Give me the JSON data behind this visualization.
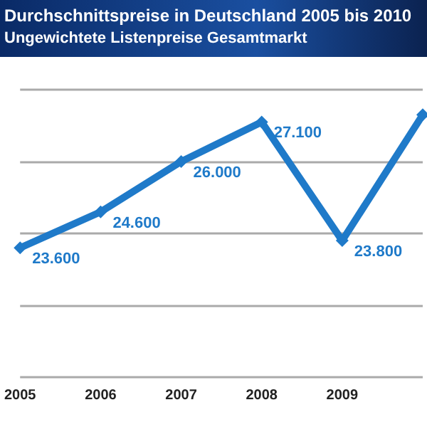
{
  "chart_data": {
    "type": "line",
    "title": "Durchschnittspreise in Deutschland 2005 bis 2010",
    "subtitle": "Ungewichtete Listenpreise Gesamtmarkt",
    "categories": [
      "2005",
      "2006",
      "2007",
      "2008",
      "2009",
      null
    ],
    "series": [
      {
        "color": "#1f7ac9",
        "values": [
          23600,
          24600,
          26000,
          27100,
          23800,
          27300
        ],
        "value_labels": [
          "23.600",
          "24.600",
          "26.000",
          "27.100",
          "23.800",
          null
        ]
      }
    ],
    "ylim": [
      20000,
      28000
    ],
    "yticks": [
      {
        "value": 20000,
        "label": null
      },
      {
        "value": 22000,
        "label": null
      },
      {
        "value": 24000,
        "label": null
      },
      {
        "value": 26000,
        "label": null
      },
      {
        "value": 28000,
        "label": null
      }
    ],
    "grid": "y",
    "marker": "diamond",
    "tick_labels": "x"
  }
}
